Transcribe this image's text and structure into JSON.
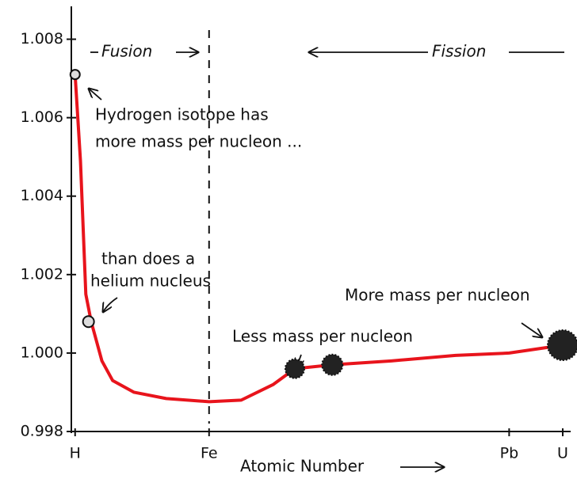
{
  "chart_data": {
    "type": "line",
    "xlabel": "Atomic Number",
    "x": [
      1,
      2,
      3,
      4,
      6,
      8,
      12,
      18,
      26,
      32,
      38,
      42,
      49,
      60,
      72,
      82,
      92
    ],
    "series": [
      {
        "color": "#e8141c",
        "values": [
          1.0071,
          1.0049,
          1.0015,
          1.0008,
          0.9998,
          0.9993,
          0.999,
          0.99884,
          0.99876,
          0.9988,
          0.9992,
          0.9996,
          0.9997,
          0.9998,
          0.99994,
          1.0,
          1.0002
        ]
      }
    ],
    "points": {
      "x": [
        1,
        3.5,
        42,
        49,
        92
      ],
      "values": [
        1.0071,
        1.0008,
        0.9996,
        0.9997,
        1.0002
      ]
    },
    "xlim": [
      0,
      92
    ],
    "ylim": [
      0.998,
      1.009
    ],
    "xticks": [
      {
        "value": 1,
        "label": "H"
      },
      {
        "value": 26,
        "label": "Fe"
      },
      {
        "value": 82,
        "label": "Pb"
      },
      {
        "value": 92,
        "label": "U"
      }
    ],
    "yticks": [
      0.998,
      {
        "value": 1,
        "label": "1.000"
      },
      1.002,
      1.004,
      1.006,
      1.008
    ],
    "annotations": {
      "fusion": "Fusion",
      "fission": "Fission",
      "hydrogen_1": "Hydrogen isotope has",
      "hydrogen_2": "more mass per nucleon ...",
      "helium_1": "than does a",
      "helium_2": "helium nucleus",
      "less": "Less mass per nucleon",
      "more": "More mass per nucleon"
    }
  }
}
